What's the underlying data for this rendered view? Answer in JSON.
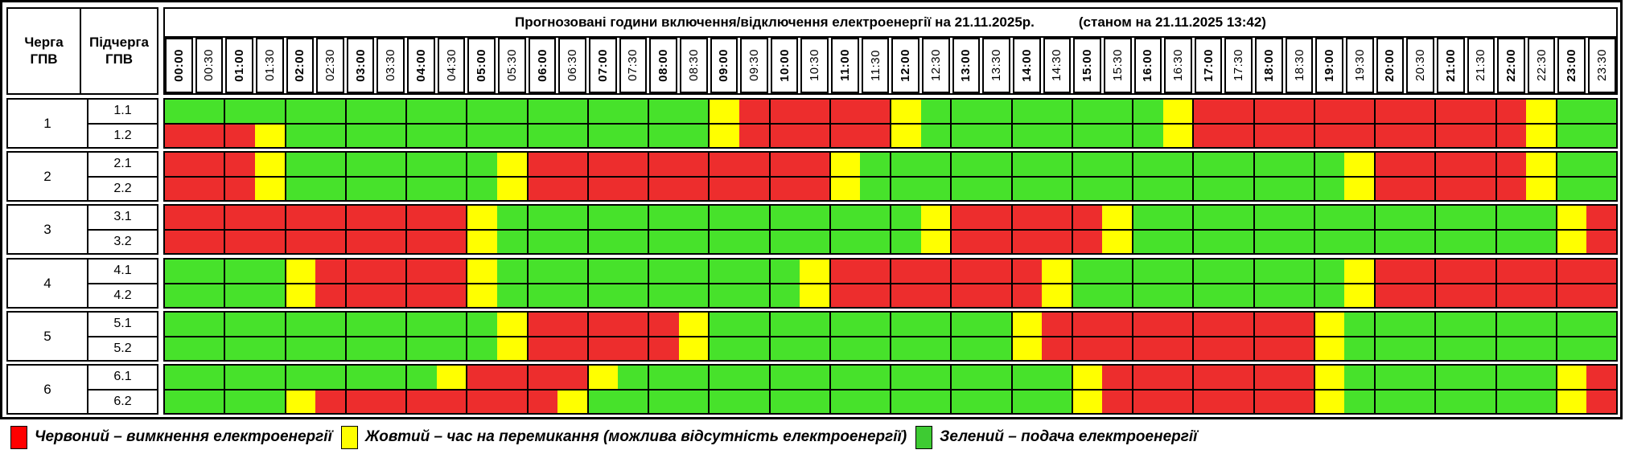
{
  "title_bar": {
    "title": "Прогнозовані години включення/відключення електроенергії на 21.11.2025р.",
    "status": "(станом на 21.11.2025 13:42)"
  },
  "left_header": {
    "col1": "Черга ГПВ",
    "col2": "Підчерга ГПВ"
  },
  "chart_data": {
    "type": "heatmap",
    "title": "Прогнозовані години включення/відключення електроенергії на 21.11.2025р.",
    "subtitle": "(станом на 21.11.2025 13:42)",
    "x_labels": [
      "00:00",
      "00:30",
      "01:00",
      "01:30",
      "02:00",
      "02:30",
      "03:00",
      "03:30",
      "04:00",
      "04:30",
      "05:00",
      "05:30",
      "06:00",
      "06:30",
      "07:00",
      "07:30",
      "08:00",
      "08:30",
      "09:00",
      "09:30",
      "10:00",
      "10:30",
      "11:00",
      "11:30",
      "12:00",
      "12:30",
      "13:00",
      "13:30",
      "14:00",
      "14:30",
      "15:00",
      "15:30",
      "16:00",
      "16:30",
      "17:00",
      "17:30",
      "18:00",
      "18:30",
      "19:00",
      "19:30",
      "20:00",
      "20:30",
      "21:00",
      "21:30",
      "22:00",
      "22:30",
      "23:00",
      "23:30"
    ],
    "colors": {
      "G": "#47e22b",
      "Y": "#ffff00",
      "R": "#ed2d2d"
    },
    "state_meanings": {
      "R": "вимкнення електроенергії",
      "Y": "час на перемикання (можлива відсутність електроенергії)",
      "G": "подача електроенергії"
    },
    "queues": [
      {
        "number": "1",
        "rows": [
          {
            "label": "1.1",
            "states": "GGGGGGGGGGGGGGGGGGYRRRRRYGGGGGGGGYRRRRRRRRRRRYGG"
          },
          {
            "label": "1.2",
            "states": "RRRYGGGGGGGGGGGGGGYRRRRRYGGGGGGGGYRRRRRRRRRRRYGG"
          }
        ]
      },
      {
        "number": "2",
        "rows": [
          {
            "label": "2.1",
            "states": "RRRYGGGGGGGYRRRRRRRRRRYGGGGGGGGGGGGGGGGYRRRRRYGG"
          },
          {
            "label": "2.2",
            "states": "RRRYGGGGGGGYRRRRRRRRRRYGGGGGGGGGGGGGGGGYRRRRRYGG"
          }
        ]
      },
      {
        "number": "3",
        "rows": [
          {
            "label": "3.1",
            "states": "RRRRRRRRRRYGGGGGGGGGGGGGGYRRRRRYGGGGGGGGGGGGGGYR"
          },
          {
            "label": "3.2",
            "states": "RRRRRRRRRRYGGGGGGGGGGGGGGYRRRRRYGGGGGGGGGGGGGGYR"
          }
        ]
      },
      {
        "number": "4",
        "rows": [
          {
            "label": "4.1",
            "states": "GGGGYRRRRRYGGGGGGGGGGYRRRRRRRYGGGGGGGGGYRRRRRRRR"
          },
          {
            "label": "4.2",
            "states": "GGGGYRRRRRYGGGGGGGGGGYRRRRRRRYGGGGGGGGGYRRRRRRRR"
          }
        ]
      },
      {
        "number": "5",
        "rows": [
          {
            "label": "5.1",
            "states": "GGGGGGGGGGGYRRRRRYGGGGGGGGGGYRRRRRRRRRYGGGGGGGGG"
          },
          {
            "label": "5.2",
            "states": "GGGGGGGGGGGYRRRRRYGGGGGGGGGGYRRRRRRRRRYGGGGGGGGG"
          }
        ]
      },
      {
        "number": "6",
        "rows": [
          {
            "label": "6.1",
            "states": "GGGGGGGGGYRRRRYGGGGGGGGGGGGGGGYRRRRRRRYGGGGGGGYR"
          },
          {
            "label": "6.2",
            "states": "GGGGYRRRRRRRRYGGGGGGGGGGGGGGGGYRRRRRRRYGGGGGGGYR"
          }
        ]
      }
    ]
  },
  "legend": {
    "items": [
      {
        "color": "#ff0000",
        "label": "Червоний – вимкнення електроенергії"
      },
      {
        "color": "#ffff00",
        "label": "Жовтий – час на перемикання (можлива відсутність електроенергії)"
      },
      {
        "color": "#3ecb33",
        "label": "Зелений – подача електроенергії"
      }
    ]
  }
}
